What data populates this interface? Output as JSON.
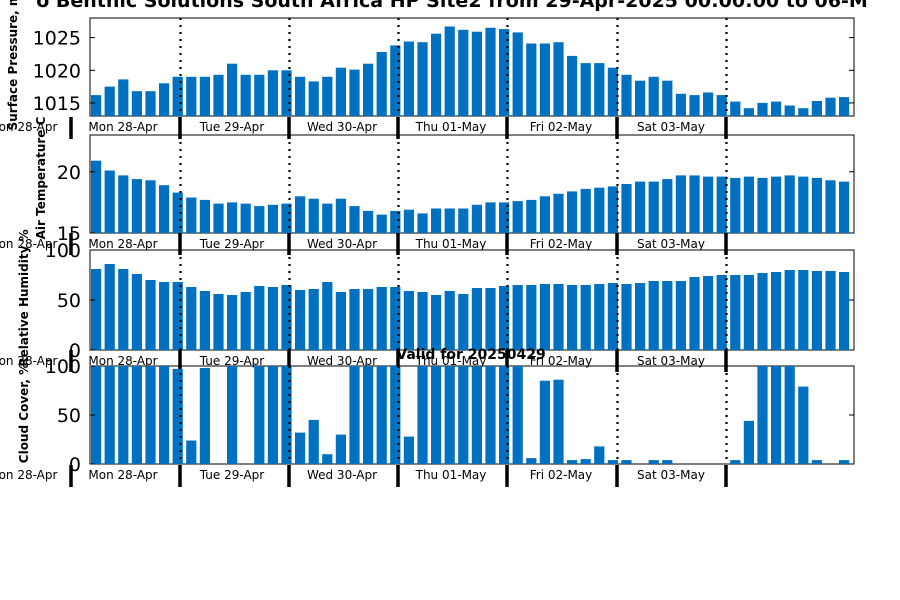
{
  "title": "o Benthic Solutions South Africa HP Site2 from 29-Apr-2025 00:00:00 to 06-M",
  "bar_color": "#0070c0",
  "chart_data": [
    {
      "type": "bar",
      "ylabel": "Surface Pressure, m",
      "ylim": [
        1013,
        1028
      ],
      "yticks": [
        1015,
        1020,
        1025
      ],
      "values": [
        1016.2,
        1017.5,
        1018.6,
        1016.8,
        1016.8,
        1018.0,
        1019.0,
        1019.0,
        1019.0,
        1019.3,
        1021.0,
        1019.3,
        1019.3,
        1020.0,
        1020.0,
        1019.0,
        1018.3,
        1019.0,
        1020.4,
        1020.1,
        1021.0,
        1022.8,
        1023.8,
        1024.4,
        1024.3,
        1025.6,
        1026.7,
        1026.2,
        1025.9,
        1026.5,
        1026.3,
        1025.8,
        1024.1,
        1024.1,
        1024.3,
        1022.2,
        1021.1,
        1021.1,
        1020.4,
        1019.3,
        1018.4,
        1019.0,
        1018.4,
        1016.4,
        1016.2,
        1016.6,
        1016.2,
        1015.2,
        1014.2,
        1015.0,
        1015.2,
        1014.6,
        1014.2,
        1015.3,
        1015.8,
        1015.9
      ]
    },
    {
      "type": "bar",
      "ylabel": "Air Temperature C",
      "ylim": [
        15,
        23
      ],
      "yticks": [
        15,
        20
      ],
      "values": [
        20.9,
        20.1,
        19.7,
        19.4,
        19.3,
        18.9,
        18.3,
        17.9,
        17.7,
        17.4,
        17.5,
        17.4,
        17.2,
        17.3,
        17.4,
        18.0,
        17.8,
        17.4,
        17.8,
        17.2,
        16.8,
        16.5,
        16.8,
        16.9,
        16.6,
        17.0,
        17.0,
        17.0,
        17.3,
        17.5,
        17.5,
        17.6,
        17.7,
        18.0,
        18.2,
        18.4,
        18.6,
        18.7,
        18.8,
        19.0,
        19.2,
        19.2,
        19.4,
        19.7,
        19.7,
        19.6,
        19.6,
        19.5,
        19.6,
        19.5,
        19.6,
        19.7,
        19.6,
        19.5,
        19.3,
        19.2
      ]
    },
    {
      "type": "bar",
      "ylabel": "Relative Humidity %",
      "ylim": [
        0,
        100
      ],
      "yticks": [
        0,
        50,
        100
      ],
      "values": [
        81,
        86,
        81,
        76,
        70,
        68,
        68,
        63,
        59,
        56,
        55,
        58,
        64,
        63,
        65,
        60,
        61,
        68,
        58,
        61,
        61,
        63,
        63,
        59,
        58,
        55,
        59,
        56,
        62,
        62,
        64,
        65,
        65,
        66,
        66,
        65,
        65,
        66,
        67,
        66,
        67,
        69,
        69,
        69,
        73,
        74,
        75,
        75,
        75,
        77,
        78,
        80,
        80,
        79,
        79,
        78
      ]
    },
    {
      "type": "bar",
      "ylabel": "Cloud Cover, %",
      "ylim": [
        0,
        100
      ],
      "yticks": [
        0,
        50,
        100
      ],
      "values": [
        100,
        100,
        100,
        100,
        100,
        100,
        97,
        24,
        98,
        0,
        100,
        0,
        100,
        100,
        100,
        32,
        45,
        10,
        30,
        100,
        100,
        100,
        100,
        28,
        100,
        100,
        100,
        100,
        100,
        100,
        100,
        100,
        6,
        85,
        86,
        4,
        5,
        18,
        4,
        4,
        0,
        4,
        4,
        0,
        0,
        0,
        0,
        4,
        44,
        100,
        100,
        100,
        79,
        4,
        0,
        4
      ]
    }
  ],
  "x_labels": [
    "on 28-Apr",
    "Mon 28-Apr",
    "Tue 29-Apr",
    "Wed 30-Apr",
    "Thu 01-May",
    "Fri 02-May",
    "Sat 03-May"
  ],
  "panel_annotations": [
    "",
    "",
    "Valid for 20250429",
    ""
  ]
}
